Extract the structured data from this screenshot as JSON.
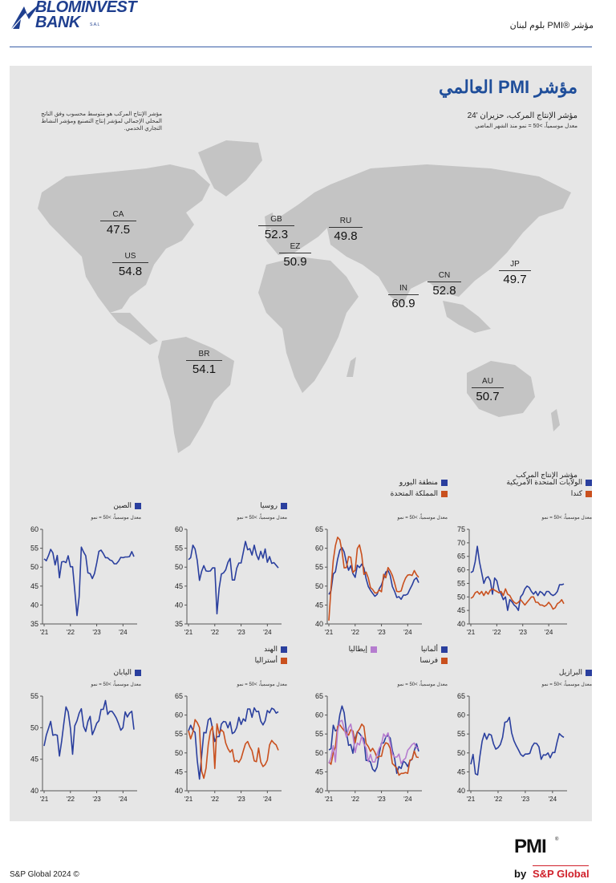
{
  "header": {
    "logo_line1": "BLOMINVEST",
    "logo_line2": "BANK",
    "logo_sal": "S.A.L",
    "report_title": "مؤشر ®PMI بلوم لبنان"
  },
  "map_section": {
    "main_title": "مؤشر PMI العالمي",
    "title": "مؤشر الإنتاج المركب، حزيران '24",
    "subtitle": "معدل موسمياً، >50 = نمو منذ الشهر الماضي",
    "note": "مؤشر الإنتاج المركب هو متوسط محسوب وفق الناتج المحلي الإجمالي لمؤشر إنتاج التصنيع ومؤشر النشاط التجاري الخدمي.",
    "countries": [
      {
        "code": "CA",
        "value": "47.5"
      },
      {
        "code": "US",
        "value": "54.8"
      },
      {
        "code": "BR",
        "value": "54.1"
      },
      {
        "code": "GB",
        "value": "52.3"
      },
      {
        "code": "EZ",
        "value": "50.9"
      },
      {
        "code": "RU",
        "value": "49.8"
      },
      {
        "code": "IN",
        "value": "60.9"
      },
      {
        "code": "CN",
        "value": "52.8"
      },
      {
        "code": "JP",
        "value": "49.7"
      },
      {
        "code": "AU",
        "value": "50.7"
      }
    ]
  },
  "charts_section": {
    "title": "مؤشر الإنتاج المركب",
    "note": "معدل موسمياً، >50 = نمو"
  },
  "colors": {
    "blue": "#2a3f9e",
    "orange": "#c9501e",
    "purple": "#b57ccf",
    "panel": "#e6e6e6",
    "land": "#bdbdbd"
  },
  "chart_data": [
    {
      "type": "line",
      "x_ticks": [
        "'21",
        "'22",
        "'23",
        "'24"
      ],
      "ylim": [
        40,
        75
      ],
      "y_ticks": [
        40,
        45,
        50,
        55,
        60,
        65,
        70,
        75
      ],
      "series": [
        {
          "name": "الولايات المتحدة الأمريكية",
          "color": "#2a3f9e",
          "values": [
            59,
            59.5,
            63,
            68.7,
            63,
            59,
            55,
            57,
            57.5,
            56,
            51,
            57,
            56,
            52.5,
            51,
            49,
            50,
            45,
            49,
            48.2,
            47,
            46.3,
            45,
            50,
            51,
            53,
            54,
            53.5,
            52,
            51,
            52,
            50.5,
            52,
            51.5,
            50.5,
            52,
            52,
            51,
            50.5,
            51,
            52,
            54.5,
            54.5,
            54.8
          ]
        },
        {
          "name": "كندا",
          "color": "#c9501e",
          "values": [
            49.5,
            50,
            51.5,
            52,
            51,
            52,
            50.5,
            52,
            51,
            52.5,
            53,
            52.5,
            52,
            51.5,
            52,
            50.5,
            53,
            51,
            50.5,
            49,
            48,
            47.5,
            48,
            49,
            48,
            47,
            48,
            49,
            50,
            50,
            48,
            48,
            47,
            47,
            46.5,
            47,
            48,
            47,
            45.5,
            46,
            47.5,
            48,
            49,
            47.5
          ]
        }
      ]
    },
    {
      "type": "line",
      "x_ticks": [
        "'21",
        "'22",
        "'23",
        "'24"
      ],
      "ylim": [
        40,
        65
      ],
      "y_ticks": [
        40,
        45,
        50,
        55,
        60,
        65
      ],
      "series": [
        {
          "name": "منطقة اليورو",
          "color": "#2a3f9e",
          "values": [
            47.8,
            48.8,
            53.2,
            53.8,
            57.1,
            59.5,
            60.2,
            59,
            56.2,
            54.2,
            55.4,
            53.3,
            52.3,
            55.5,
            54.9,
            55.8,
            54.8,
            52,
            49.9,
            48.9,
            48.1,
            47.3,
            47.8,
            49.3,
            50.3,
            52,
            53.7,
            54.1,
            52.8,
            49.9,
            48.6,
            47,
            47.2,
            46.5,
            47.6,
            47.6,
            47.9,
            49.2,
            50.3,
            51.7,
            52.2,
            50.9
          ]
        },
        {
          "name": "المملكة المتحدة",
          "color": "#c9501e",
          "values": [
            40.9,
            49.5,
            56.8,
            60.7,
            62.9,
            62.2,
            59.2,
            54.8,
            54.9,
            57.8,
            57.6,
            53.6,
            54.2,
            59.9,
            60.9,
            58.2,
            53.1,
            53.7,
            52.1,
            49.6,
            49.1,
            48.2,
            48.2,
            49,
            48.5,
            53.1,
            52.2,
            54.9,
            54,
            52.8,
            50.8,
            48.6,
            48.5,
            48.7,
            50.7,
            52.1,
            52.9,
            53,
            52.8,
            54.1,
            53,
            52.3
          ]
        }
      ]
    },
    {
      "type": "line",
      "x_ticks": [
        "'21",
        "'22",
        "'23",
        "'24"
      ],
      "ylim": [
        35,
        60
      ],
      "y_ticks": [
        35,
        40,
        45,
        50,
        55,
        60
      ],
      "series": [
        {
          "name": "روسيا",
          "color": "#2a3f9e",
          "values": [
            52,
            52.5,
            55.8,
            54.8,
            51.8,
            46.5,
            48.9,
            50.4,
            49,
            48.9,
            49,
            49.8,
            49.8,
            37.7,
            44.4,
            48.2,
            48.5,
            49.3,
            51.3,
            52.3,
            46.6,
            46.6,
            49.7,
            51.1,
            51.1,
            53.9,
            56.8,
            54.6,
            54.9,
            53.2,
            55.8,
            53.3,
            52,
            54.2,
            52.4,
            54.8,
            51.3,
            52.8,
            51,
            51.2,
            50.5,
            49.8
          ]
        }
      ]
    },
    {
      "type": "line",
      "x_ticks": [
        "'21",
        "'22",
        "'23",
        "'24"
      ],
      "ylim": [
        35,
        60
      ],
      "y_ticks": [
        35,
        40,
        45,
        50,
        55,
        60
      ],
      "series": [
        {
          "name": "الصين",
          "color": "#2a3f9e",
          "values": [
            52.2,
            51.7,
            53.1,
            54.7,
            53.8,
            50.6,
            53.1,
            47.2,
            51.4,
            51.5,
            51.2,
            53,
            50.1,
            50.1,
            43.9,
            37.2,
            42.2,
            55.3,
            54,
            53,
            48.5,
            48.3,
            47,
            48.3,
            51.1,
            54.2,
            54.5,
            53.6,
            52.5,
            52.5,
            51.9,
            51.7,
            50.9,
            50.9,
            51.6,
            52.6,
            52.5,
            52.7,
            52.7,
            52.8,
            54.1,
            52.8
          ]
        }
      ]
    },
    {
      "type": "line",
      "x_ticks": [
        "'21",
        "'22",
        "'23",
        "'24"
      ],
      "ylim": [
        40,
        65
      ],
      "y_ticks": [
        40,
        45,
        50,
        55,
        60,
        65
      ],
      "series": [
        {
          "name": "البرازيل",
          "color": "#2a3f9e",
          "values": [
            47,
            49.6,
            44.5,
            44.2,
            49.1,
            53.1,
            55.2,
            53.6,
            55,
            54.7,
            52.4,
            51,
            51.4,
            52.2,
            54.1,
            58.1,
            58.3,
            59.4,
            55.3,
            53.2,
            51.9,
            50.8,
            49.6,
            49.1,
            49.7,
            49.7,
            49.9,
            51.7,
            52.6,
            52.5,
            51.6,
            48.3,
            49.5,
            49.4,
            50,
            48.7,
            50.1,
            50.1,
            52.8,
            55.1,
            54.5,
            54.1
          ]
        }
      ]
    },
    {
      "type": "line",
      "x_ticks": [
        "'21",
        "'22",
        "'23",
        "'24"
      ],
      "ylim": [
        40,
        65
      ],
      "y_ticks": [
        40,
        45,
        50,
        55,
        60,
        65
      ],
      "series": [
        {
          "name": "ألمانيا",
          "color": "#2a3f9e",
          "values": [
            50.8,
            51.1,
            57.3,
            55.8,
            56.2,
            60.1,
            62.4,
            60.6,
            55.5,
            52,
            52.2,
            49.9,
            53.8,
            55.6,
            55.1,
            54.3,
            53.7,
            48,
            48.1,
            47.6,
            45.7,
            45.1,
            46.3,
            49.9,
            52.6,
            52.6,
            54.2,
            54.6,
            53.9,
            50.6,
            48.5,
            44.6,
            46.4,
            45.9,
            47.8,
            47.4,
            46.4,
            47.9,
            48.3,
            50.6,
            52.4,
            50.4
          ]
        },
        {
          "name": "فرنسا",
          "color": "#c9501e",
          "values": [
            47.7,
            47,
            50,
            51.6,
            57,
            57.4,
            56.6,
            55.9,
            55.3,
            54.7,
            56.1,
            55.8,
            52.7,
            55.5,
            56.3,
            57.6,
            57,
            52.5,
            51.7,
            50.4,
            51.2,
            50.2,
            48.7,
            49.1,
            49.1,
            51.7,
            52.7,
            52.4,
            51.2,
            47.2,
            46.6,
            46.0,
            44.1,
            44.6,
            44.6,
            44.8,
            44.6,
            48.1,
            48.3,
            50.5,
            48.9,
            48.8
          ]
        },
        {
          "name": "إيطاليا",
          "color": "#b57ccf",
          "values": [
            47.2,
            48.8,
            51.9,
            47.6,
            55.7,
            58.3,
            58.6,
            56.4,
            54.2,
            56.6,
            57.6,
            54.7,
            50.1,
            52.6,
            52.1,
            54.5,
            52.4,
            51.3,
            47.7,
            49.6,
            47.6,
            47.6,
            49.6,
            51.2,
            52.2,
            55,
            54.2,
            55.3,
            52.6,
            49.7,
            48.9,
            48.9,
            49.7,
            47.2,
            48.1,
            48.6,
            50.7,
            51.4,
            52.2,
            52.6,
            51.3,
            51.4
          ]
        }
      ]
    },
    {
      "type": "line",
      "x_ticks": [
        "'21",
        "'22",
        "'23",
        "'24"
      ],
      "ylim": [
        40,
        65
      ],
      "y_ticks": [
        40,
        45,
        50,
        55,
        60,
        65
      ],
      "series": [
        {
          "name": "الهند",
          "color": "#2a3f9e",
          "values": [
            55.8,
            57.3,
            56,
            55.4,
            48.1,
            43.1,
            49.2,
            55.4,
            55.3,
            58.7,
            59.2,
            56.4,
            53,
            54.3,
            54.3,
            57.6,
            58.3,
            58.2,
            56.6,
            58.2,
            55.1,
            55.5,
            56.7,
            59.4,
            57.5,
            59,
            58.4,
            61.6,
            61.6,
            59.4,
            61.9,
            60.9,
            61,
            58.4,
            57.4,
            58.5,
            61.2,
            60.6,
            61.8,
            61.5,
            60.5,
            60.9
          ]
        },
        {
          "name": "أستراليا",
          "color": "#c9501e",
          "values": [
            55.9,
            53.7,
            55.5,
            58.8,
            58,
            56.7,
            45.2,
            43.3,
            46,
            52.1,
            55.7,
            57,
            45.9,
            57.7,
            55.1,
            56.1,
            55.5,
            52.6,
            51.1,
            50.2,
            50.9,
            47.7,
            48,
            47.5,
            48.5,
            50.5,
            52.4,
            53,
            51.6,
            50.6,
            47.9,
            47.7,
            51.3,
            47.6,
            46.4,
            46.9,
            48.1,
            52.1,
            53.3,
            52.6,
            52.1,
            50.7
          ]
        }
      ]
    },
    {
      "type": "line",
      "x_ticks": [
        "'21",
        "'22",
        "'23",
        "'24"
      ],
      "ylim": [
        40,
        55
      ],
      "y_ticks": [
        40,
        45,
        50,
        55
      ],
      "series": [
        {
          "name": "اليابان",
          "color": "#2a3f9e",
          "values": [
            47.1,
            48.8,
            49.9,
            51,
            48.8,
            48.9,
            48.8,
            45.5,
            47.9,
            50.7,
            53.3,
            52.5,
            49.9,
            45.8,
            50.3,
            51.1,
            52.3,
            53,
            50.2,
            49.4,
            51,
            51.8,
            48.9,
            49.7,
            50.7,
            51.1,
            52.9,
            52.9,
            54.3,
            52.1,
            52.6,
            52.6,
            52.1,
            51.5,
            50.6,
            49.6,
            50,
            52.5,
            51.7,
            52.3,
            52.6,
            49.7
          ]
        }
      ]
    }
  ]
}
